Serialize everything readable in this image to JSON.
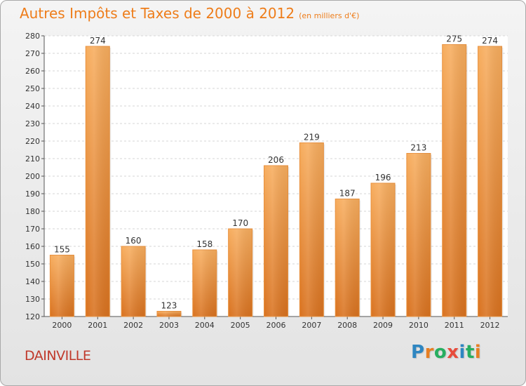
{
  "title": "Autres Impôts et Taxes de 2000 à 2012",
  "unit_label": "(en milliers d'€)",
  "place": "DAINVILLE",
  "logo": {
    "text": "Proxiti",
    "letters": [
      "P",
      "r",
      "o",
      "x",
      "i",
      "t",
      "i"
    ],
    "colors": [
      "#2e86c1",
      "#e67e22",
      "#27ae60",
      "#e74c3c",
      "#2e86c1",
      "#27ae60",
      "#e67e22"
    ]
  },
  "colors": {
    "title": "#ee7d1a",
    "bar_light": "#f6a95a",
    "bar_dark": "#dd7522",
    "place": "#c0392b"
  },
  "chart_data": {
    "type": "bar",
    "title": "Autres Impôts et Taxes de 2000 à 2012",
    "subtitle": "(en milliers d'€)",
    "categories": [
      "2000",
      "2001",
      "2002",
      "2003",
      "2004",
      "2005",
      "2006",
      "2007",
      "2008",
      "2009",
      "2010",
      "2011",
      "2012"
    ],
    "values": [
      155,
      274,
      160,
      123,
      158,
      170,
      206,
      219,
      187,
      196,
      213,
      275,
      274
    ],
    "ylim": [
      120,
      280
    ],
    "yticks": [
      120,
      130,
      140,
      150,
      160,
      170,
      180,
      190,
      200,
      210,
      220,
      230,
      240,
      250,
      260,
      270,
      280
    ],
    "grid": true,
    "legend": "none"
  }
}
